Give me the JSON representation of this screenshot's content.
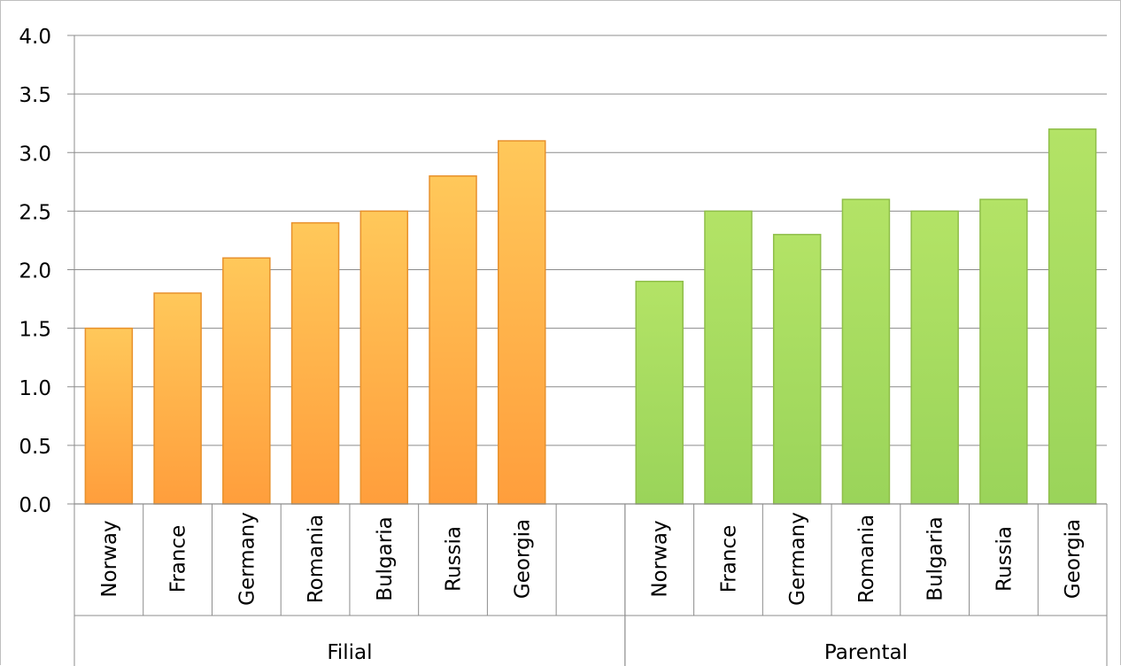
{
  "chart_data": {
    "type": "bar",
    "ylim": [
      0,
      4.0
    ],
    "ytick_step": 0.5,
    "yticks": [
      "0.0",
      "0.5",
      "1.0",
      "1.5",
      "2.0",
      "2.5",
      "3.0",
      "3.5",
      "4.0"
    ],
    "grid": true,
    "legend": "none",
    "groups": [
      {
        "name": "Filial",
        "color": "#FFAE3D",
        "categories": [
          "Norway",
          "France",
          "Germany",
          "Romania",
          "Bulgaria",
          "Russia",
          "Georgia",
          ""
        ],
        "values": [
          1.5,
          1.8,
          2.1,
          2.4,
          2.5,
          2.8,
          3.1,
          null
        ]
      },
      {
        "name": "Parental",
        "color": "#A6D95A",
        "categories": [
          "Norway",
          "France",
          "Germany",
          "Romania",
          "Bulgaria",
          "Russia",
          "Georgia"
        ],
        "values": [
          1.9,
          2.5,
          2.3,
          2.6,
          2.5,
          2.6,
          3.2
        ]
      }
    ]
  }
}
